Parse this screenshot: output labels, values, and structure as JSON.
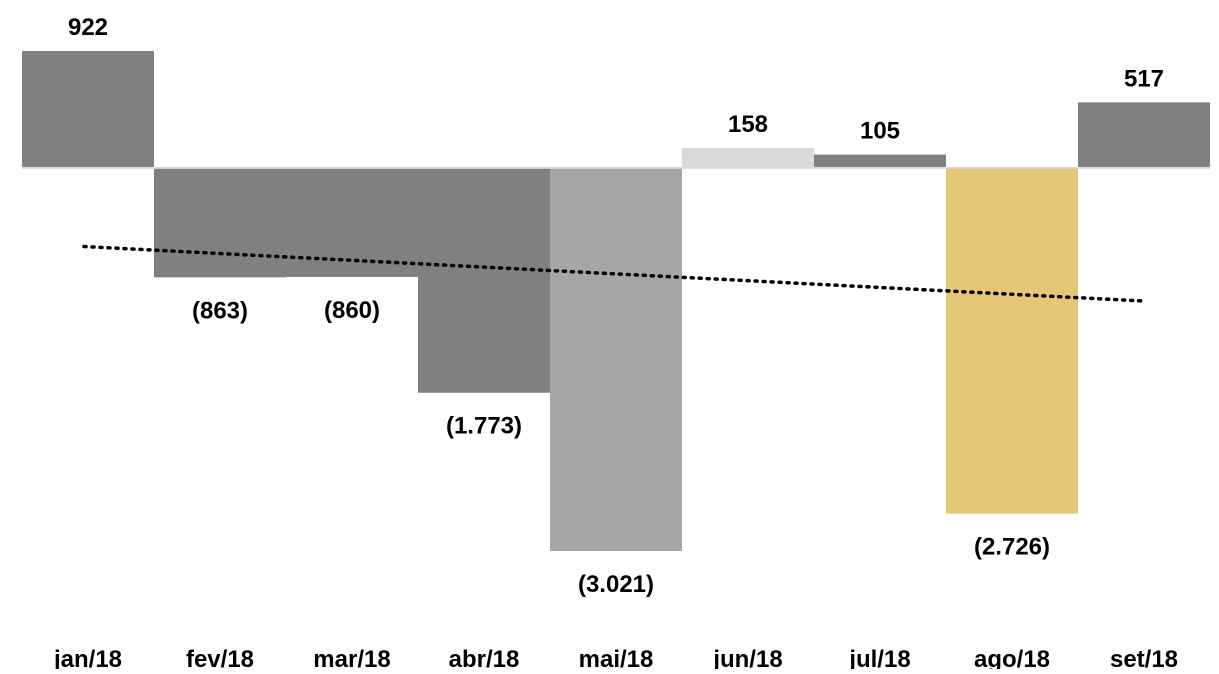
{
  "chart_data": {
    "type": "bar",
    "title": "",
    "xlabel": "",
    "ylabel": "",
    "categories": [
      "jan/18",
      "fev/18",
      "mar/18",
      "abr/18",
      "mai/18",
      "jun/18",
      "jul/18",
      "ago/18",
      "set/18"
    ],
    "values": [
      922,
      -863,
      -860,
      -1773,
      -3021,
      158,
      105,
      -2726,
      517
    ],
    "value_labels": [
      "922",
      "(863)",
      "(860)",
      "(1.773)",
      "(3.021)",
      "158",
      "105",
      "(2.726)",
      "517"
    ],
    "bar_colors": [
      "#808080",
      "#808080",
      "#808080",
      "#808080",
      "#a6a6a6",
      "#d9d9d9",
      "#808080",
      "#e6c677",
      "#808080"
    ],
    "ylim": [
      -3400,
      1250
    ],
    "grid": false,
    "legend": "none",
    "trendline": {
      "style": "dotted",
      "color": "#000000",
      "start_value": -620,
      "end_value": -1050
    }
  }
}
